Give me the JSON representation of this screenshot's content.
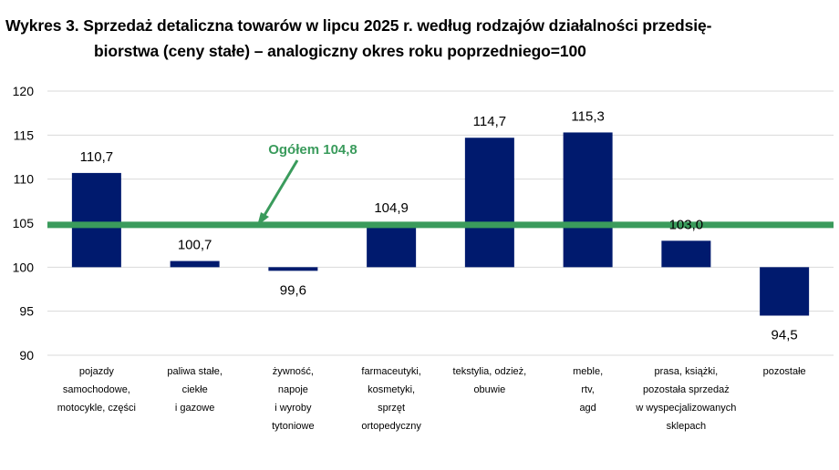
{
  "title": {
    "line1": "Wykres 3. Sprzedaż detaliczna towarów w lipcu 2025 r. według rodzajów działalności przedsię-",
    "line2": "biorstwa (ceny stałe) – analogiczny okres roku poprzedniego=100"
  },
  "chart_data": {
    "type": "bar",
    "categories": [
      [
        "pojazdy",
        "samochodowe,",
        "motocykle,  części"
      ],
      [
        "paliwa stałe,",
        "ciekłe",
        "i gazowe"
      ],
      [
        "żywność,",
        "napoje",
        "i wyroby",
        "tytoniowe"
      ],
      [
        "farmaceutyki,",
        "kosmetyki,",
        "sprzęt",
        "ortopedyczny"
      ],
      [
        "tekstylia,  odzież,",
        "obuwie"
      ],
      [
        "meble,",
        "rtv,",
        "agd"
      ],
      [
        "prasa,  książki,",
        "pozostała  sprzedaż",
        "w wyspecjalizowanych",
        "sklepach"
      ],
      [
        "pozostałe"
      ]
    ],
    "values": [
      110.7,
      100.7,
      99.6,
      104.9,
      114.7,
      115.3,
      103.0,
      94.5
    ],
    "value_labels": [
      "110,7",
      "100,7",
      "99,6",
      "104,9",
      "114,7",
      "115,3",
      "103,0",
      "94,5"
    ],
    "baseline": 100,
    "ylim": [
      90,
      120
    ],
    "yticks": [
      90,
      95,
      100,
      105,
      110,
      115,
      120
    ],
    "ytick_labels": [
      "90",
      "95",
      "100",
      "105",
      "110",
      "115",
      "120"
    ],
    "grid": true,
    "reference_line": {
      "value": 104.8,
      "label": "Ogółem 104,8",
      "color": "#3a9b5c"
    },
    "bar_color": "#001a6e",
    "grid_color": "#d9d9d9"
  }
}
